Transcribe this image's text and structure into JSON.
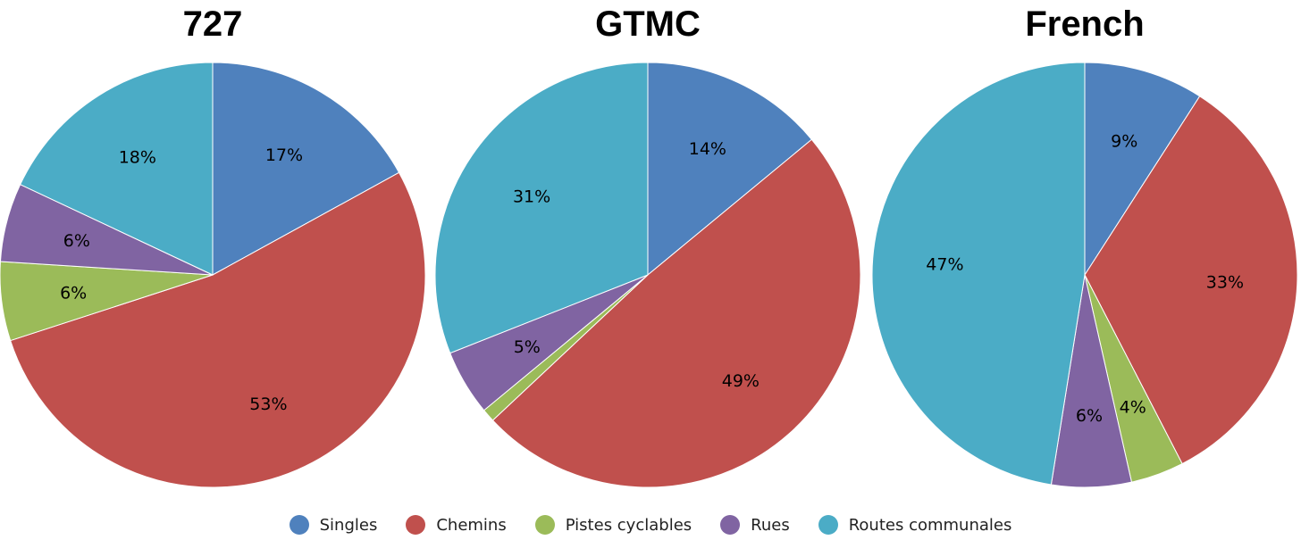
{
  "chart_data": [
    {
      "type": "pie",
      "title": "727",
      "categories": [
        "Singles",
        "Chemins",
        "Pistes cyclables",
        "Rues",
        "Routes communales"
      ],
      "values": [
        17,
        53,
        6,
        6,
        18
      ],
      "labels": [
        "17%",
        "53%",
        "6%",
        "6%",
        "18%"
      ]
    },
    {
      "type": "pie",
      "title": "GTMC",
      "categories": [
        "Singles",
        "Chemins",
        "Pistes cyclables",
        "Rues",
        "Routes communales"
      ],
      "values": [
        14,
        49,
        1,
        5,
        31
      ],
      "labels": [
        "14%",
        "49%",
        "",
        "5%",
        "31%"
      ]
    },
    {
      "type": "pie",
      "title": "French",
      "categories": [
        "Singles",
        "Chemins",
        "Pistes cyclables",
        "Rues",
        "Routes communales"
      ],
      "values": [
        9,
        33,
        4,
        6,
        47
      ],
      "labels": [
        "9%",
        "33%",
        "4%",
        "6%",
        "47%"
      ]
    }
  ],
  "legend": [
    {
      "label": "Singles",
      "color": "#4F81BD"
    },
    {
      "label": "Chemins",
      "color": "#C0504D"
    },
    {
      "label": "Pistes cyclables",
      "color": "#9BBB59"
    },
    {
      "label": "Rues",
      "color": "#8064A2"
    },
    {
      "label": "Routes communales",
      "color": "#4BACC6"
    }
  ]
}
